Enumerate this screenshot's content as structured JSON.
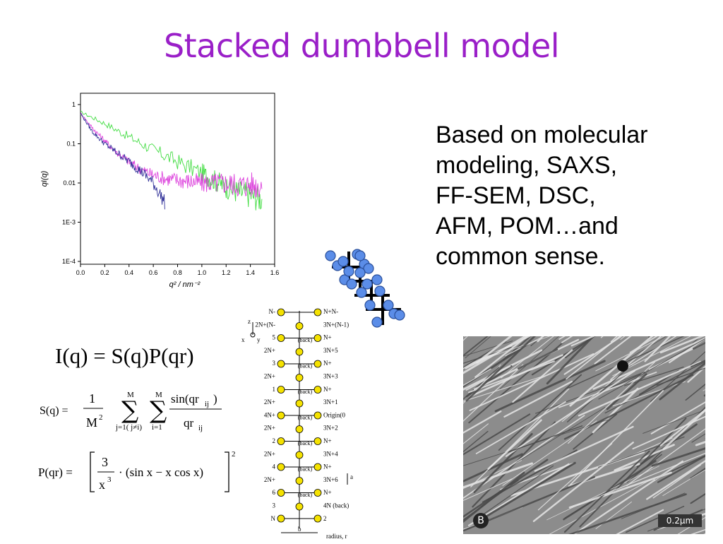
{
  "slide": {
    "title": "Stacked dumbbell model",
    "description": "Based on molecular\nmodeling, SAXS,\nFF-SEM, DSC,\nAFM, POM…and\ncommon sense."
  },
  "equations": {
    "iq": "I(q) = S(q)P(qr)",
    "sq": {
      "lhs": "S(q) =",
      "num": "1",
      "den": "M",
      "den_exp": "2",
      "sum1_top": "M",
      "sum1_bottom": "j=1( j≠i)",
      "sum2_top": "M",
      "sum2_bottom": "i=1",
      "frac_num": "sin(qr",
      "frac_num_sub": "ij",
      "frac_den": "qr",
      "frac_den_sub": "ij"
    },
    "pq": {
      "lhs": "P(qr) =",
      "num": "3",
      "den": "x",
      "den_exp": "3",
      "body": "· (sin x − x cos x)",
      "exp": "2"
    }
  },
  "chart_data": {
    "type": "line",
    "xlabel": "q² / nm⁻²",
    "ylabel": "qI(q)",
    "xlim": [
      0.0,
      1.6
    ],
    "ylim": [
      0.0001,
      1
    ],
    "y_scale": "log",
    "x_ticks": [
      "0.0",
      "0.2",
      "0.4",
      "0.6",
      "0.8",
      "1.0",
      "1.2",
      "1.4",
      "1.6"
    ],
    "y_ticks": [
      "1",
      "0.1",
      "0.01",
      "1E-3",
      "1E-4"
    ],
    "series": [
      {
        "color": "#44dd44",
        "x": [
          0.0,
          0.2,
          0.4,
          0.6,
          0.8,
          1.0,
          1.1,
          1.2,
          1.3,
          1.4,
          1.5
        ],
        "y": [
          0.65,
          0.33,
          0.15,
          0.07,
          0.035,
          0.018,
          0.012,
          0.008,
          0.006,
          0.005,
          0.004
        ]
      },
      {
        "color": "#dd44dd",
        "x": [
          0.0,
          0.1,
          0.2,
          0.3,
          0.4,
          0.5,
          0.6,
          0.7,
          0.8,
          0.9,
          1.0,
          1.1,
          1.2,
          1.3,
          1.4,
          1.5
        ],
        "y": [
          0.6,
          0.25,
          0.12,
          0.06,
          0.035,
          0.022,
          0.016,
          0.013,
          0.012,
          0.011,
          0.01,
          0.01,
          0.01,
          0.009,
          0.009,
          0.009
        ]
      },
      {
        "color": "#333399",
        "x": [
          0.0,
          0.1,
          0.2,
          0.3,
          0.4,
          0.5,
          0.6,
          0.7
        ],
        "y": [
          0.6,
          0.2,
          0.1,
          0.06,
          0.035,
          0.02,
          0.01,
          0.003
        ]
      }
    ]
  },
  "schematic": {
    "left_labels": [
      "N-",
      "2N+(N-",
      "5",
      "2N+",
      "3",
      "2N+",
      "1",
      "2N+",
      "4N+",
      "2N+",
      "2",
      "2N+",
      "4",
      "2N+",
      "6",
      "3",
      "N"
    ],
    "right_labels": [
      "N+N-",
      "3N+(N-1)",
      "N+",
      "3N+5",
      "N+",
      "3N+3",
      "N+",
      "3N+1",
      "Origin(0",
      "3N+2",
      "N+",
      "3N+4",
      "N+",
      "3N+6",
      "N+",
      "4N (back)",
      "2"
    ],
    "axis_labels": [
      "z",
      "x",
      "y",
      "a",
      "b",
      "radius, r"
    ],
    "back_label": "(back)"
  },
  "micrograph": {
    "panel_label": "B",
    "scale_label": "0.2μm"
  }
}
